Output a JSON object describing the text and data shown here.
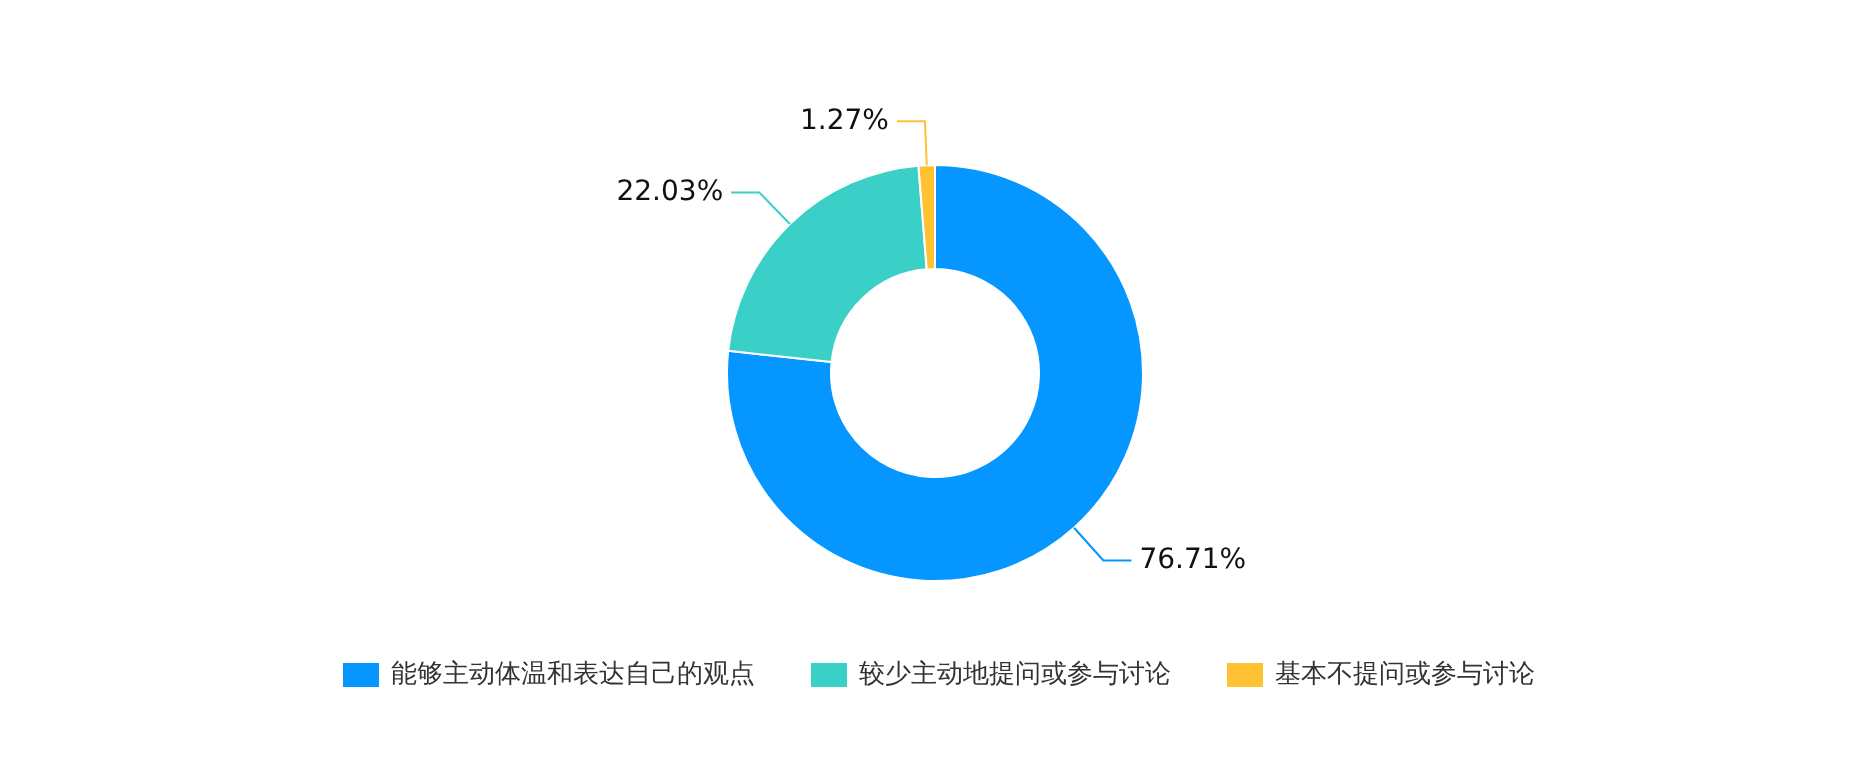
{
  "chart_data": {
    "type": "donut",
    "categories": [
      "能够主动体温和表达自己的观点",
      "较少主动地提问或参与讨论",
      "基本不提问或参与讨论"
    ],
    "values": [
      76.71,
      22.03,
      1.27
    ],
    "colors": [
      "#0597ff",
      "#3ad0c8",
      "#ffc233"
    ],
    "value_labels": [
      "76.71%",
      "22.03%",
      "1.27%"
    ],
    "legend": "bottom"
  }
}
